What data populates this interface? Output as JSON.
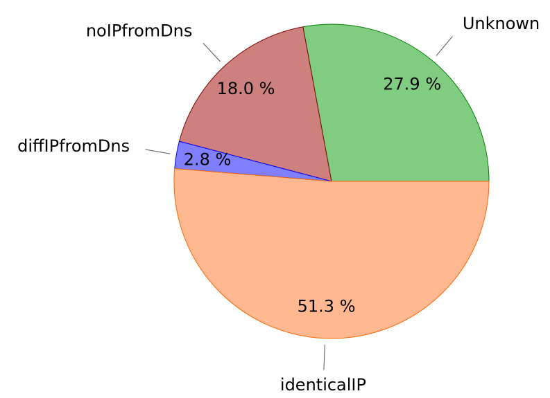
{
  "chart_data": {
    "type": "pie",
    "categories": [
      "Unknown",
      "noIPfromDns",
      "diffIPfromDns",
      "identicalIP"
    ],
    "values": [
      27.9,
      18.0,
      2.8,
      51.3
    ],
    "value_labels": [
      "27.9 %",
      "18.0 %",
      "2.8 %",
      "51.3 %"
    ],
    "colors": [
      "#80cc80",
      "#cd807e",
      "#8080ff",
      "#ffb890"
    ],
    "stroke_colors": [
      "#008000",
      "#800000",
      "#0000ff",
      "#ff6600"
    ]
  }
}
